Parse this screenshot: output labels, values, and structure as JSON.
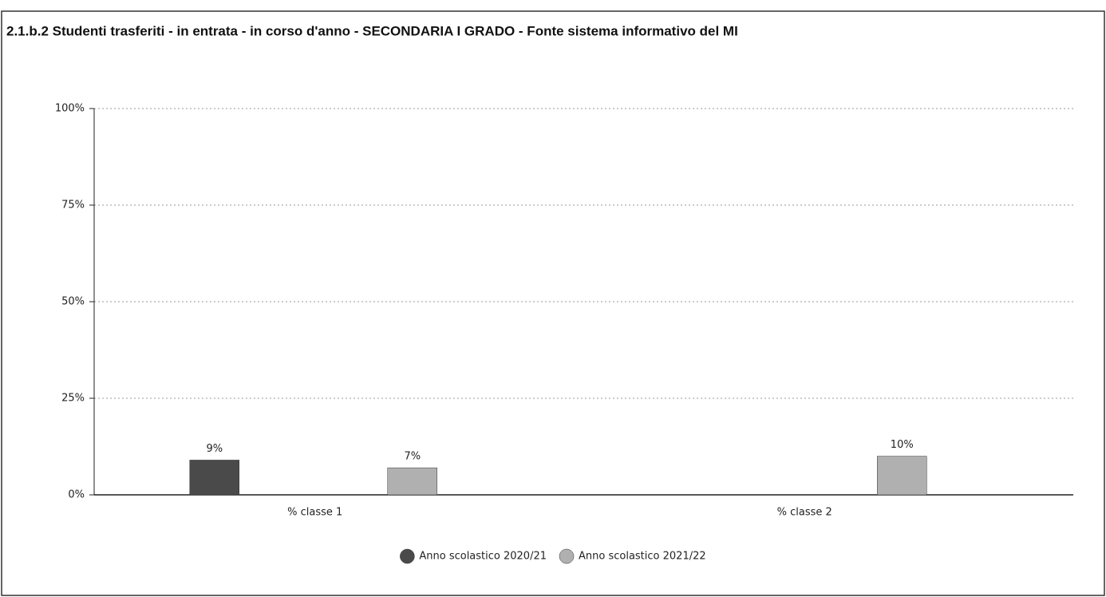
{
  "chart_data": {
    "type": "bar",
    "title": "2.1.b.2 Studenti trasferiti - in entrata - in corso d'anno - SECONDARIA I GRADO - Fonte sistema informativo del MI",
    "categories": [
      "% classe 1",
      "% classe 2"
    ],
    "series": [
      {
        "name": "Anno scolastico 2020/21",
        "color": "#4a4a4a",
        "values": [
          9,
          null
        ],
        "value_labels": [
          "9%",
          null
        ]
      },
      {
        "name": "Anno scolastico 2021/22",
        "color": "#b0b0b0",
        "values": [
          7,
          10
        ],
        "value_labels": [
          "7%",
          "10%"
        ]
      }
    ],
    "ylim": [
      0,
      100
    ],
    "yticks": [
      {
        "value": 0,
        "label": "0%"
      },
      {
        "value": 25,
        "label": "25%"
      },
      {
        "value": 50,
        "label": "50%"
      },
      {
        "value": 75,
        "label": "75%"
      },
      {
        "value": 100,
        "label": "100%"
      }
    ],
    "grid": true,
    "legend": "bottom"
  }
}
